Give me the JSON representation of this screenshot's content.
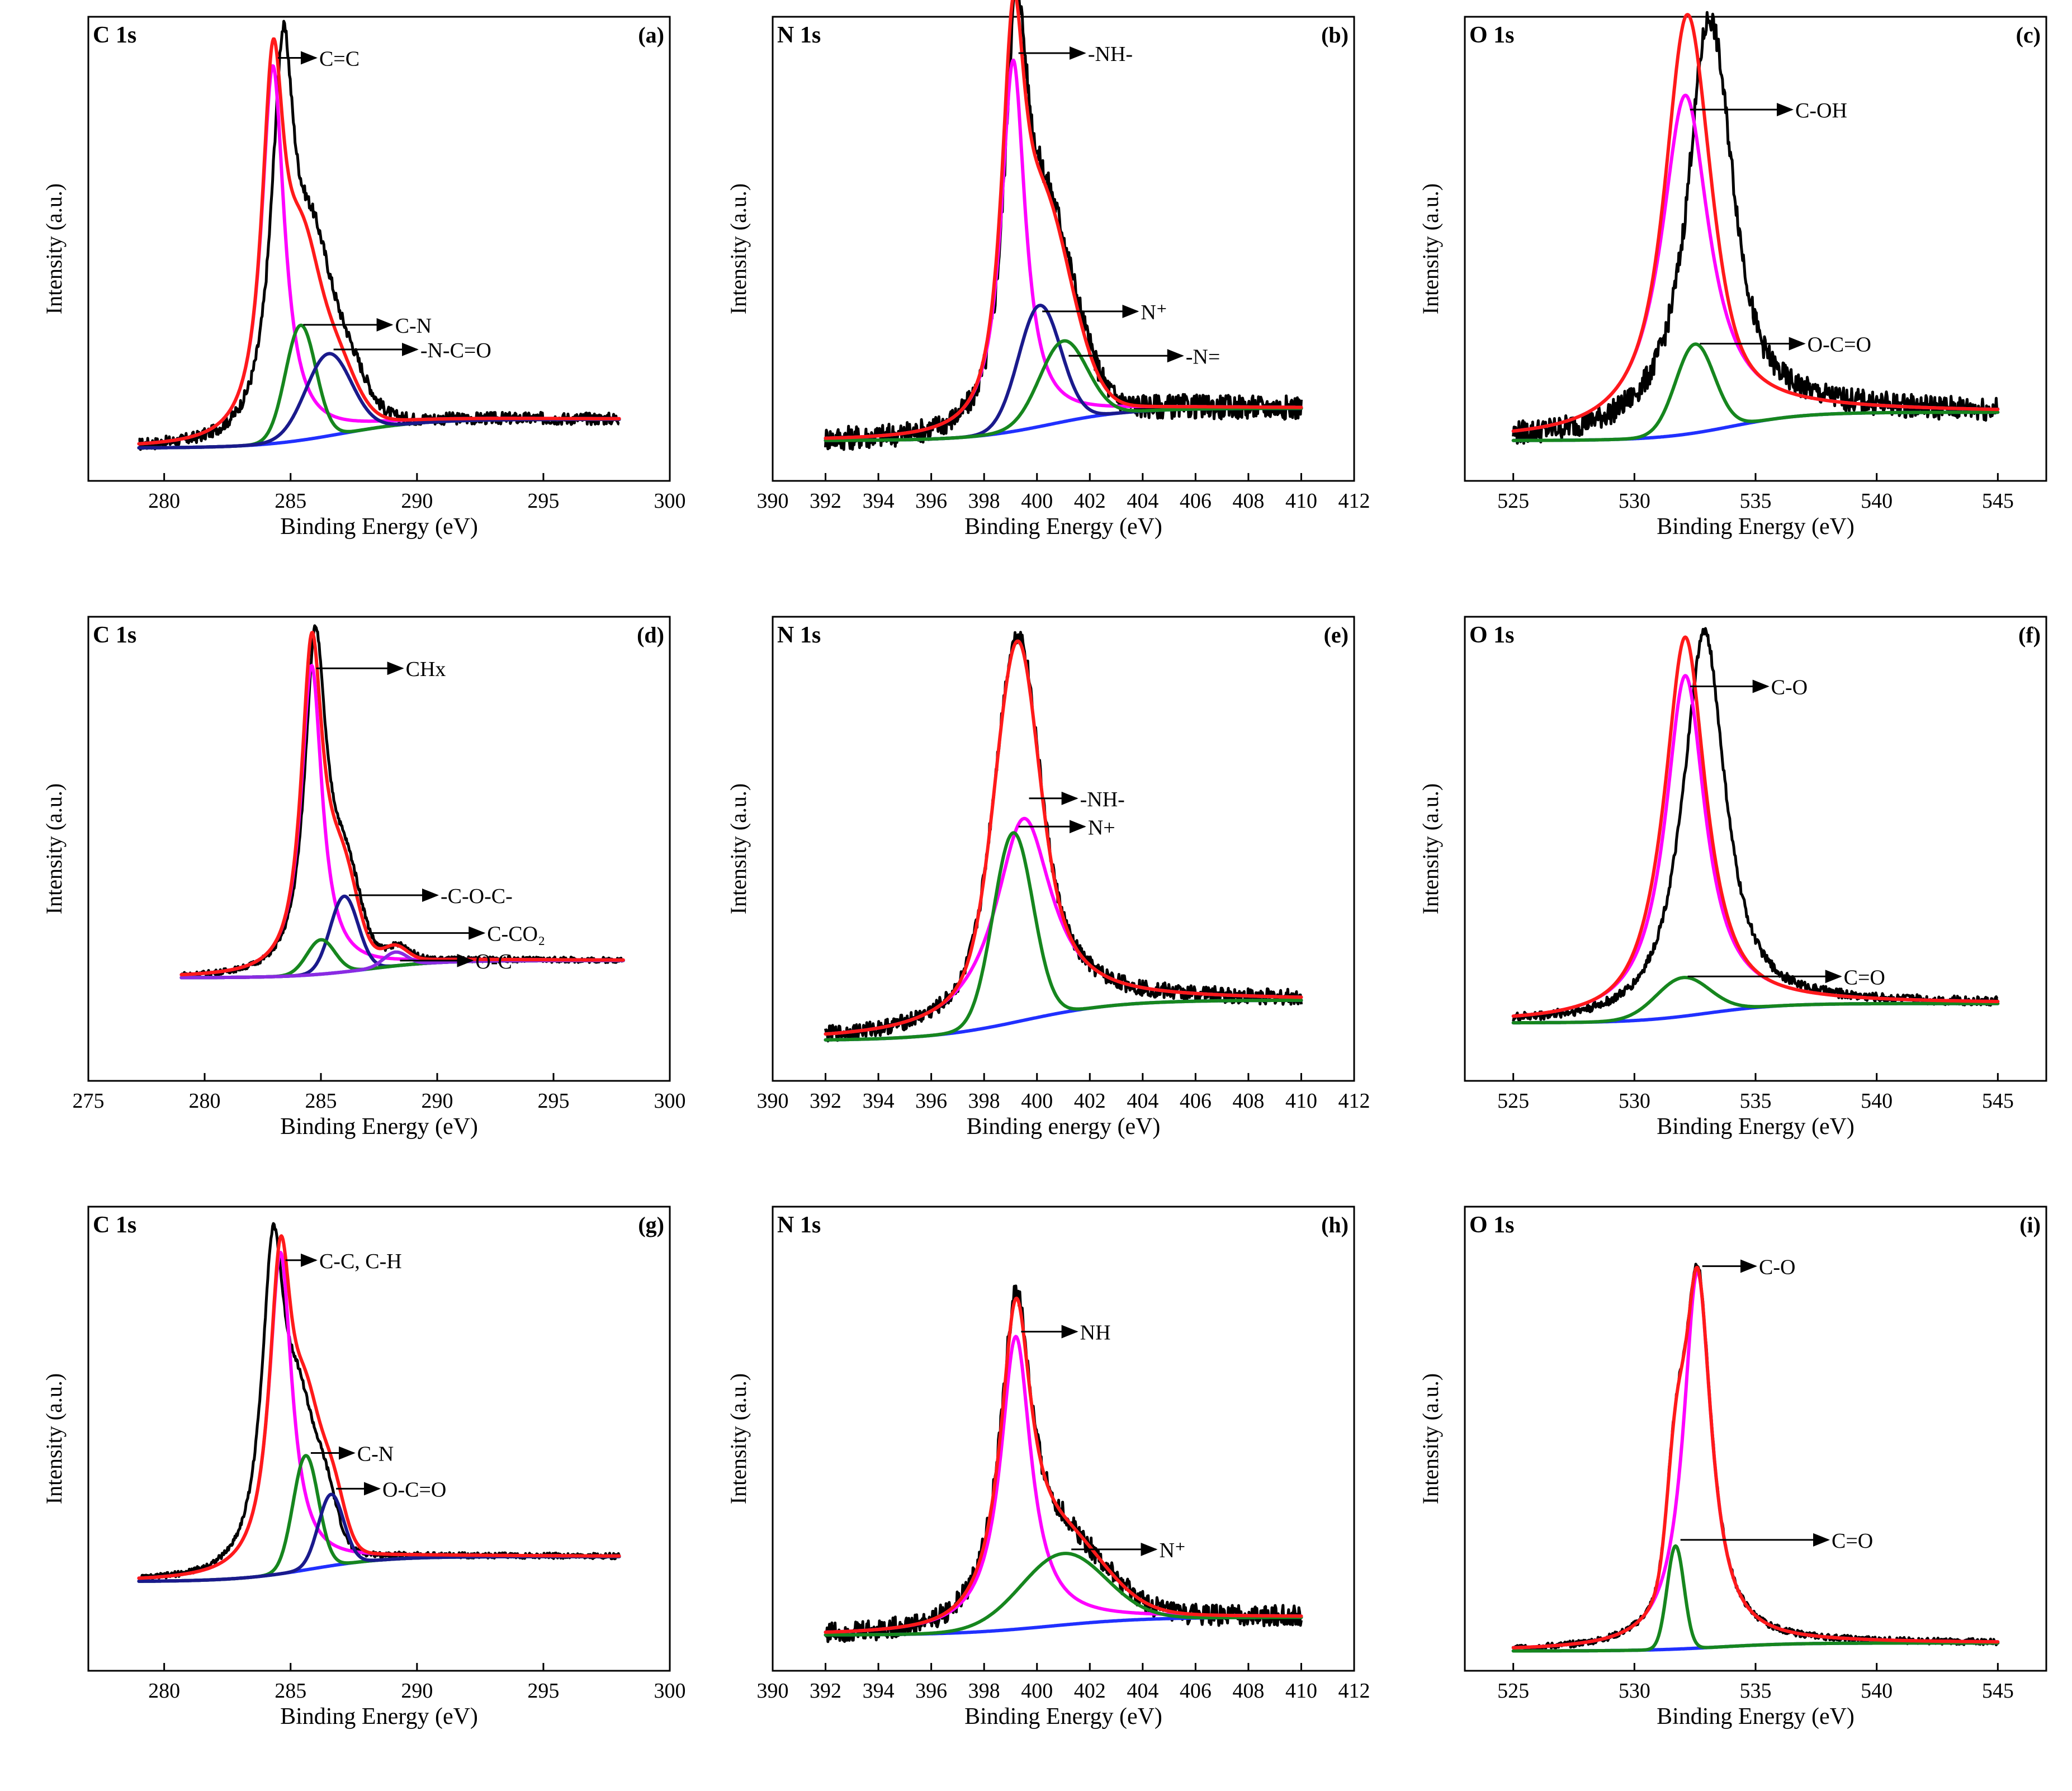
{
  "figure_name": "XPS deconvoluted spectra",
  "colors": {
    "raw": "#000000",
    "envelope": "#ff1a1a",
    "magenta": "#ff00ff",
    "green": "#16861e",
    "navy": "#1a1a8c",
    "blue": "#2030ff",
    "purple": "#8a2be2"
  },
  "chart_data": [
    {
      "id": "a",
      "panel_label": "(a)",
      "title": "C 1s",
      "type": "line",
      "xlabel": "Binding Energy (eV)",
      "ylabel": "Intensity (a.u.)",
      "xlim": [
        277,
        300
      ],
      "xticks": [
        280,
        285,
        290,
        295,
        300
      ],
      "xrange": [
        279,
        298
      ],
      "ylim": [
        -0.08,
        1.05
      ],
      "background": {
        "left": 0.0,
        "right": 0.07,
        "center": 287,
        "width": 1.6
      },
      "noise": 0.015,
      "raw_dx": 0.4,
      "raw_dy": 0.04,
      "series": [
        {
          "name": "C=C",
          "color_key": "magenta",
          "center": 284.3,
          "height": 0.92,
          "width": 0.55,
          "shape": "lorentz"
        },
        {
          "name": "C-N",
          "color_key": "green",
          "center": 285.4,
          "height": 0.28,
          "width": 0.6,
          "shape": "gauss"
        },
        {
          "name": "-N-C=O",
          "color_key": "navy",
          "center": 286.5,
          "height": 0.2,
          "width": 0.9,
          "shape": "gauss"
        }
      ],
      "annotations": [
        {
          "text": "C=C",
          "x": 284.5,
          "y": 0.95,
          "tx": 286.0
        },
        {
          "text": "C-N",
          "x": 285.5,
          "y": 0.3,
          "tx": 289.0
        },
        {
          "text": "-N-C=O",
          "x": 286.7,
          "y": 0.24,
          "tx": 290.0
        }
      ]
    },
    {
      "id": "b",
      "panel_label": "(b)",
      "title": "N 1s",
      "type": "line",
      "xlabel": "Binding Energy (eV)",
      "ylabel": "Intensity (a.u.)",
      "xlim": [
        390,
        412
      ],
      "xticks": [
        390,
        392,
        394,
        396,
        398,
        400,
        402,
        404,
        406,
        408,
        410,
        412
      ],
      "xrange": [
        392,
        410
      ],
      "ylim": [
        -0.1,
        1.05
      ],
      "background": {
        "left": 0.0,
        "right": 0.08,
        "center": 400.5,
        "width": 1.5
      },
      "noise": 0.03,
      "raw_dx": 0.1,
      "raw_dy": 0.02,
      "series": [
        {
          "name": "-NH-",
          "color_key": "magenta",
          "center": 399.1,
          "height": 0.92,
          "width": 0.55,
          "shape": "lorentz"
        },
        {
          "name": "N+",
          "color_key": "navy",
          "center": 400.1,
          "height": 0.3,
          "width": 0.8,
          "shape": "gauss"
        },
        {
          "name": "-N=",
          "color_key": "green",
          "center": 401.0,
          "height": 0.2,
          "width": 0.9,
          "shape": "gauss"
        }
      ],
      "annotations": [
        {
          "text": "-NH-",
          "x": 399.3,
          "y": 0.96,
          "tx": 401.8
        },
        {
          "text": "N⁺",
          "x": 400.2,
          "y": 0.32,
          "tx": 403.8
        },
        {
          "text": "-N=",
          "x": 401.2,
          "y": 0.21,
          "tx": 405.5
        }
      ]
    },
    {
      "id": "c",
      "panel_label": "(c)",
      "title": "O 1s",
      "type": "line",
      "xlabel": "Binding Energy (eV)",
      "ylabel": "Intensity (a.u.)",
      "xlim": [
        523,
        547
      ],
      "xticks": [
        525,
        530,
        535,
        540,
        545
      ],
      "xrange": [
        525,
        545
      ],
      "ylim": [
        -0.1,
        1.05
      ],
      "background": {
        "left": 0.0,
        "right": 0.07,
        "center": 534,
        "width": 1.5
      },
      "noise": 0.03,
      "raw_dx": 0.9,
      "raw_dy": -0.05,
      "series": [
        {
          "name": "C-OH",
          "color_key": "magenta",
          "center": 532.1,
          "height": 0.84,
          "width": 1.2,
          "shape": "lorentz"
        },
        {
          "name": "O-C=O",
          "color_key": "green",
          "center": 532.5,
          "height": 0.22,
          "width": 0.8,
          "shape": "gauss"
        }
      ],
      "annotations": [
        {
          "text": "C-OH",
          "x": 532.3,
          "y": 0.82,
          "tx": 536.5
        },
        {
          "text": "O-C=O",
          "x": 532.7,
          "y": 0.24,
          "tx": 537.0
        }
      ]
    },
    {
      "id": "d",
      "panel_label": "(d)",
      "title": "C 1s",
      "type": "line",
      "xlabel": "Binding Energy (eV)",
      "ylabel": "Intensity (a.u.)",
      "xlim": [
        275,
        300
      ],
      "xticks": [
        275,
        280,
        285,
        290,
        295,
        300
      ],
      "xrange": [
        279,
        298
      ],
      "ylim": [
        -0.3,
        1.05
      ],
      "background": {
        "left": 0.0,
        "right": 0.05,
        "center": 287,
        "width": 1.5
      },
      "noise": 0.008,
      "raw_dx": 0.15,
      "raw_dy": 0.02,
      "series": [
        {
          "name": "CHx",
          "color_key": "magenta",
          "center": 284.6,
          "height": 0.9,
          "width": 0.55,
          "shape": "lorentz"
        },
        {
          "name": "-C-O-C-",
          "color_key": "navy",
          "center": 286.0,
          "height": 0.22,
          "width": 0.6,
          "shape": "gauss"
        },
        {
          "name": "C-CO2",
          "color_key": "green",
          "center": 285.0,
          "height": 0.1,
          "width": 0.6,
          "shape": "gauss"
        },
        {
          "name": "O-C",
          "color_key": "purple",
          "center": 288.2,
          "height": 0.04,
          "width": 0.5,
          "shape": "gauss"
        }
      ],
      "annotations": [
        {
          "text": "CHx",
          "x": 284.8,
          "y": 0.9,
          "tx": 288.5
        },
        {
          "text": "-C-O-C-",
          "x": 286.2,
          "y": 0.24,
          "tx": 290.0
        },
        {
          "text": "C-CO₂",
          "x": 287.0,
          "y": 0.08,
          "tx": 292.0,
          "ty": 0.13
        },
        {
          "text": "O-C",
          "x": 288.4,
          "y": 0.05,
          "tx": 291.5
        }
      ]
    },
    {
      "id": "e",
      "panel_label": "(e)",
      "title": "N 1s",
      "type": "line",
      "xlabel": "Binding energy (eV)",
      "ylabel": "Intensity (a.u.)",
      "xlim": [
        390,
        412
      ],
      "xticks": [
        390,
        392,
        394,
        396,
        398,
        400,
        402,
        404,
        406,
        408,
        410,
        412
      ],
      "xrange": [
        392,
        410
      ],
      "ylim": [
        -0.1,
        1.05
      ],
      "background": {
        "left": 0.0,
        "right": 0.1,
        "center": 399.5,
        "width": 1.8
      },
      "noise": 0.02,
      "raw_dx": 0.0,
      "raw_dy": 0.02,
      "series": [
        {
          "name": "-NH-",
          "color_key": "magenta",
          "center": 399.5,
          "height": 0.5,
          "width": 1.3,
          "shape": "lorentz"
        },
        {
          "name": "N+",
          "color_key": "green",
          "center": 399.1,
          "height": 0.47,
          "width": 0.75,
          "shape": "gauss"
        }
      ],
      "annotations": [
        {
          "text": "-NH-",
          "x": 399.7,
          "y": 0.6,
          "tx": 401.5
        },
        {
          "text": "N+",
          "x": 399.3,
          "y": 0.53,
          "tx": 401.8
        }
      ]
    },
    {
      "id": "f",
      "panel_label": "(f)",
      "title": "O 1s",
      "type": "line",
      "xlabel": "Binding Energy (eV)",
      "ylabel": "Intensity (a.u.)",
      "xlim": [
        523,
        547
      ],
      "xticks": [
        525,
        530,
        535,
        540,
        545
      ],
      "xrange": [
        525,
        545
      ],
      "ylim": [
        -0.15,
        1.05
      ],
      "background": {
        "left": 0.0,
        "right": 0.05,
        "center": 533,
        "width": 1.5
      },
      "noise": 0.012,
      "raw_dx": 0.8,
      "raw_dy": 0.02,
      "series": [
        {
          "name": "C-O",
          "color_key": "magenta",
          "center": 532.1,
          "height": 0.88,
          "width": 1.0,
          "shape": "lorentz"
        },
        {
          "name": "C=O",
          "color_key": "green",
          "center": 532.0,
          "height": 0.1,
          "width": 1.1,
          "shape": "gauss"
        }
      ],
      "annotations": [
        {
          "text": "C-O",
          "x": 532.3,
          "y": 0.87,
          "tx": 535.5
        },
        {
          "text": "C=O",
          "x": 532.2,
          "y": 0.12,
          "tx": 538.5
        }
      ]
    },
    {
      "id": "g",
      "panel_label": "(g)",
      "title": "C 1s",
      "type": "line",
      "xlabel": "Binding Energy (eV)",
      "ylabel": "Intensity (a.u.)",
      "xlim": [
        277,
        300
      ],
      "xticks": [
        280,
        285,
        290,
        295,
        300
      ],
      "xrange": [
        279,
        298
      ],
      "ylim": [
        -0.25,
        1.05
      ],
      "background": {
        "left": 0.0,
        "right": 0.07,
        "center": 285.8,
        "width": 1.5
      },
      "noise": 0.008,
      "raw_dx": -0.3,
      "raw_dy": 0.04,
      "series": [
        {
          "name": "C-C, C-H",
          "color_key": "magenta",
          "center": 284.6,
          "height": 0.9,
          "width": 0.55,
          "shape": "lorentz"
        },
        {
          "name": "C-N",
          "color_key": "green",
          "center": 285.6,
          "height": 0.32,
          "width": 0.5,
          "shape": "gauss"
        },
        {
          "name": "O-C=O",
          "color_key": "navy",
          "center": 286.6,
          "height": 0.2,
          "width": 0.5,
          "shape": "gauss"
        }
      ],
      "annotations": [
        {
          "text": "C-C, C-H",
          "x": 284.8,
          "y": 0.9,
          "tx": 286.0
        },
        {
          "text": "C-N",
          "x": 285.8,
          "y": 0.36,
          "tx": 287.5
        },
        {
          "text": "O-C=O",
          "x": 286.8,
          "y": 0.26,
          "tx": 288.5
        }
      ]
    },
    {
      "id": "h",
      "panel_label": "(h)",
      "title": "N 1s",
      "type": "line",
      "xlabel": "Binding Energy (eV)",
      "ylabel": "Intensity (a.u.)",
      "xlim": [
        390,
        412
      ],
      "xticks": [
        390,
        392,
        394,
        396,
        398,
        400,
        402,
        404,
        406,
        408,
        410,
        412
      ],
      "xrange": [
        392,
        410
      ],
      "ylim": [
        -0.1,
        1.2
      ],
      "background": {
        "left": 0.0,
        "right": 0.05,
        "center": 400.5,
        "width": 1.8
      },
      "noise": 0.03,
      "raw_dx": 0.0,
      "raw_dy": 0.02,
      "series": [
        {
          "name": "NH",
          "color_key": "magenta",
          "center": 399.2,
          "height": 0.82,
          "width": 0.7,
          "shape": "lorentz"
        },
        {
          "name": "N+",
          "color_key": "green",
          "center": 401.0,
          "height": 0.2,
          "width": 1.6,
          "shape": "gauss"
        }
      ],
      "annotations": [
        {
          "text": "NH",
          "x": 399.4,
          "y": 0.85,
          "tx": 401.5
        },
        {
          "text": "N⁺",
          "x": 401.3,
          "y": 0.24,
          "tx": 404.5
        }
      ]
    },
    {
      "id": "i",
      "panel_label": "(i)",
      "title": "O 1s",
      "type": "line",
      "xlabel": "Binding Energy (eV)",
      "ylabel": "Intensity (a.u.)",
      "xlim": [
        523,
        547
      ],
      "xticks": [
        525,
        530,
        535,
        540,
        545
      ],
      "xrange": [
        525,
        545
      ],
      "ylim": [
        -0.05,
        1.12
      ],
      "background": {
        "left": 0.0,
        "right": 0.02,
        "center": 533.5,
        "width": 1.5
      },
      "noise": 0.008,
      "raw_dx": 0.0,
      "raw_dy": 0.01,
      "series": [
        {
          "name": "C-O",
          "color_key": "magenta",
          "center": 532.6,
          "height": 0.95,
          "width": 0.7,
          "shape": "lorentz"
        },
        {
          "name": "C=O",
          "color_key": "green",
          "center": 531.7,
          "height": 0.26,
          "width": 0.35,
          "shape": "gauss"
        }
      ],
      "annotations": [
        {
          "text": "C-O",
          "x": 532.8,
          "y": 0.97,
          "tx": 535.0
        },
        {
          "text": "C=O",
          "x": 531.9,
          "y": 0.28,
          "tx": 538.0
        }
      ]
    }
  ]
}
